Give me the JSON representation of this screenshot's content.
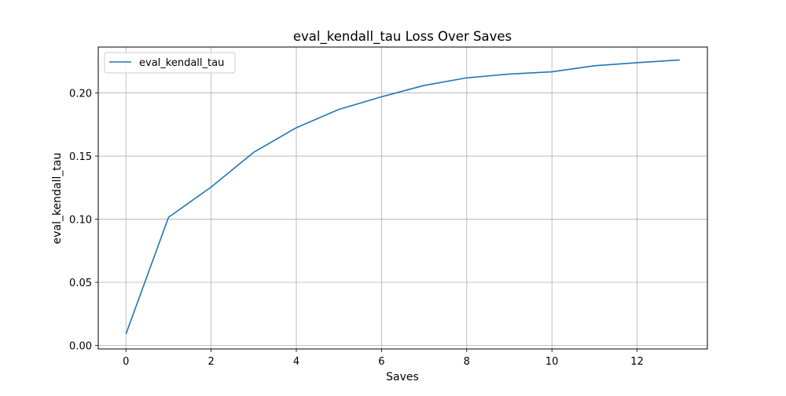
{
  "chart_data": {
    "type": "line",
    "title": "eval_kendall_tau Loss Over Saves",
    "xlabel": "Saves",
    "ylabel": "eval_kendall_tau",
    "xlim": [
      -0.65,
      13.65
    ],
    "ylim": [
      -0.0028,
      0.2364
    ],
    "x_ticks": [
      0,
      2,
      4,
      6,
      8,
      10,
      12
    ],
    "x_tick_labels": [
      "0",
      "2",
      "4",
      "6",
      "8",
      "10",
      "12"
    ],
    "y_ticks": [
      0.0,
      0.05,
      0.1,
      0.15,
      0.2
    ],
    "y_tick_labels": [
      "0.00",
      "0.05",
      "0.10",
      "0.15",
      "0.20"
    ],
    "grid": true,
    "legend_position": "top-left",
    "series": [
      {
        "name": "eval_kendall_tau",
        "color": "#1f77b4",
        "x": [
          0,
          1,
          2,
          3,
          4,
          5,
          6,
          7,
          8,
          9,
          10,
          11,
          12,
          13
        ],
        "y": [
          0.009,
          0.1015,
          0.1255,
          0.153,
          0.1725,
          0.187,
          0.197,
          0.206,
          0.212,
          0.215,
          0.2168,
          0.2216,
          0.224,
          0.2262
        ]
      }
    ]
  }
}
